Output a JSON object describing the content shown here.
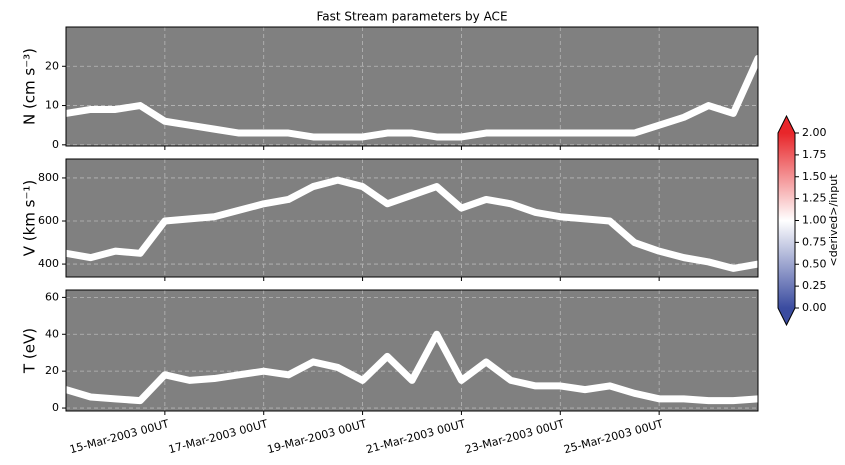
{
  "chart_data": [
    {
      "type": "line",
      "title": "Fast Stream parameters by ACE",
      "ylabel": "N (cm s⁻³)",
      "x": [
        "13-Mar-2003 00UT",
        "13-Mar-2003 12UT",
        "14-Mar-2003 00UT",
        "14-Mar-2003 12UT",
        "15-Mar-2003 00UT",
        "15-Mar-2003 12UT",
        "16-Mar-2003 00UT",
        "16-Mar-2003 12UT",
        "17-Mar-2003 00UT",
        "17-Mar-2003 12UT",
        "18-Mar-2003 00UT",
        "18-Mar-2003 12UT",
        "19-Mar-2003 00UT",
        "19-Mar-2003 12UT",
        "20-Mar-2003 00UT",
        "20-Mar-2003 12UT",
        "21-Mar-2003 00UT",
        "21-Mar-2003 12UT",
        "22-Mar-2003 00UT",
        "22-Mar-2003 12UT",
        "23-Mar-2003 00UT",
        "23-Mar-2003 12UT",
        "24-Mar-2003 00UT",
        "24-Mar-2003 12UT",
        "25-Mar-2003 00UT",
        "25-Mar-2003 12UT",
        "26-Mar-2003 00UT",
        "26-Mar-2003 12UT",
        "27-Mar-2003 00UT"
      ],
      "series": [
        {
          "color": "#ffffff",
          "values": [
            8,
            9,
            9,
            10,
            6,
            5,
            4,
            3,
            3,
            3,
            2,
            2,
            2,
            3,
            3,
            2,
            2,
            3,
            3,
            3,
            3,
            3,
            3,
            3,
            5,
            7,
            10,
            8,
            22
          ]
        }
      ],
      "xlim": [
        "13-Mar-2003 00UT",
        "27-Mar-2003 00UT"
      ],
      "xticks": [
        "15-Mar-2003 00UT",
        "17-Mar-2003 00UT",
        "19-Mar-2003 00UT",
        "21-Mar-2003 00UT",
        "23-Mar-2003 00UT",
        "25-Mar-2003 00UT"
      ],
      "ylim": [
        -0.3,
        30
      ],
      "yticks": [
        0,
        10,
        20
      ],
      "grid": true,
      "background": "#808080"
    },
    {
      "type": "line",
      "ylabel": "V (km s⁻¹)",
      "x": [
        "13-Mar-2003 00UT",
        "13-Mar-2003 12UT",
        "14-Mar-2003 00UT",
        "14-Mar-2003 12UT",
        "15-Mar-2003 00UT",
        "15-Mar-2003 12UT",
        "16-Mar-2003 00UT",
        "16-Mar-2003 12UT",
        "17-Mar-2003 00UT",
        "17-Mar-2003 12UT",
        "18-Mar-2003 00UT",
        "18-Mar-2003 12UT",
        "19-Mar-2003 00UT",
        "19-Mar-2003 12UT",
        "20-Mar-2003 00UT",
        "20-Mar-2003 12UT",
        "21-Mar-2003 00UT",
        "21-Mar-2003 12UT",
        "22-Mar-2003 00UT",
        "22-Mar-2003 12UT",
        "23-Mar-2003 00UT",
        "23-Mar-2003 12UT",
        "24-Mar-2003 00UT",
        "24-Mar-2003 12UT",
        "25-Mar-2003 00UT",
        "25-Mar-2003 12UT",
        "26-Mar-2003 00UT",
        "26-Mar-2003 12UT",
        "27-Mar-2003 00UT"
      ],
      "series": [
        {
          "color": "#ffffff",
          "values": [
            450,
            430,
            460,
            450,
            600,
            610,
            620,
            650,
            680,
            700,
            760,
            790,
            760,
            680,
            720,
            760,
            660,
            700,
            680,
            640,
            620,
            610,
            600,
            500,
            460,
            430,
            410,
            380,
            400
          ]
        }
      ],
      "xlim": [
        "13-Mar-2003 00UT",
        "27-Mar-2003 00UT"
      ],
      "xticks": [
        "15-Mar-2003 00UT",
        "17-Mar-2003 00UT",
        "19-Mar-2003 00UT",
        "21-Mar-2003 00UT",
        "23-Mar-2003 00UT",
        "25-Mar-2003 00UT"
      ],
      "ylim": [
        340,
        888
      ],
      "yticks": [
        400,
        600,
        800
      ],
      "grid": true,
      "background": "#808080"
    },
    {
      "type": "line",
      "ylabel": "T (eV)",
      "x": [
        "13-Mar-2003 00UT",
        "13-Mar-2003 12UT",
        "14-Mar-2003 00UT",
        "14-Mar-2003 12UT",
        "15-Mar-2003 00UT",
        "15-Mar-2003 12UT",
        "16-Mar-2003 00UT",
        "16-Mar-2003 12UT",
        "17-Mar-2003 00UT",
        "17-Mar-2003 12UT",
        "18-Mar-2003 00UT",
        "18-Mar-2003 12UT",
        "19-Mar-2003 00UT",
        "19-Mar-2003 12UT",
        "20-Mar-2003 00UT",
        "20-Mar-2003 12UT",
        "21-Mar-2003 00UT",
        "21-Mar-2003 12UT",
        "22-Mar-2003 00UT",
        "22-Mar-2003 12UT",
        "23-Mar-2003 00UT",
        "23-Mar-2003 12UT",
        "24-Mar-2003 00UT",
        "24-Mar-2003 12UT",
        "25-Mar-2003 00UT",
        "25-Mar-2003 12UT",
        "26-Mar-2003 00UT",
        "26-Mar-2003 12UT",
        "27-Mar-2003 00UT"
      ],
      "series": [
        {
          "color": "#ffffff",
          "values": [
            10,
            6,
            5,
            4,
            18,
            15,
            16,
            18,
            20,
            18,
            25,
            22,
            15,
            28,
            15,
            40,
            15,
            25,
            15,
            12,
            12,
            10,
            12,
            8,
            5,
            5,
            4,
            4,
            5
          ]
        }
      ],
      "xlim": [
        "13-Mar-2003 00UT",
        "27-Mar-2003 00UT"
      ],
      "xticks": [
        "15-Mar-2003 00UT",
        "17-Mar-2003 00UT",
        "19-Mar-2003 00UT",
        "21-Mar-2003 00UT",
        "23-Mar-2003 00UT",
        "25-Mar-2003 00UT"
      ],
      "ylim": [
        -1.6,
        64
      ],
      "yticks": [
        0,
        20,
        40,
        60
      ],
      "grid": true,
      "background": "#808080"
    },
    {
      "type": "colorbar",
      "label": "<derived>/input",
      "lim": [
        0,
        2
      ],
      "colors": [
        "#3b4ca0",
        "#ffffff",
        "#e8262a"
      ],
      "ticks": [
        {
          "value": 0,
          "label": "0.00"
        },
        {
          "value": 0.25,
          "label": "0.25"
        },
        {
          "value": 0.5,
          "label": "0.50"
        },
        {
          "value": 0.75,
          "label": "0.75"
        },
        {
          "value": 1,
          "label": "1.00"
        },
        {
          "value": 1.25,
          "label": "1.25"
        },
        {
          "value": 1.5,
          "label": "1.50"
        },
        {
          "value": 1.75,
          "label": "1.75"
        },
        {
          "value": 2,
          "label": "2.00"
        }
      ]
    }
  ]
}
